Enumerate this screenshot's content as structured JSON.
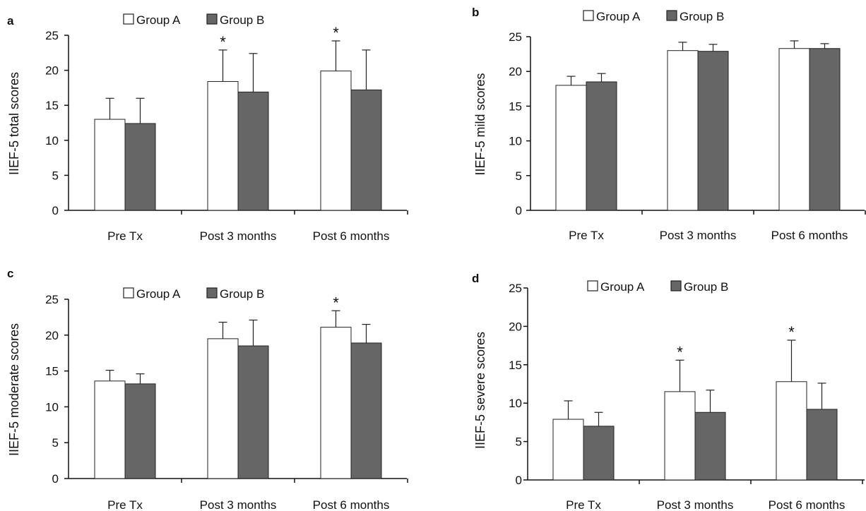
{
  "colors": {
    "group_a": "#ffffff",
    "group_b": "#666666",
    "outline": "#222222",
    "axis": "#111111"
  },
  "chart_data": [
    {
      "type": "bar",
      "panel": "a",
      "ylabel": "IIEF-5 total scores",
      "ylim": [
        0,
        25
      ],
      "yticks": [
        "0",
        "5",
        "10",
        "15",
        "20",
        "25"
      ],
      "categories": [
        "Pre Tx",
        "Post 3 months",
        "Post 6 months"
      ],
      "legend": [
        "Group A",
        "Group B"
      ],
      "series": [
        {
          "name": "Group A",
          "values": [
            13.0,
            18.4,
            19.9
          ],
          "errors": [
            3.0,
            4.5,
            4.3
          ]
        },
        {
          "name": "Group B",
          "values": [
            12.4,
            16.9,
            17.2
          ],
          "errors": [
            3.6,
            5.5,
            5.7
          ]
        }
      ],
      "annotations": [
        {
          "category": 1,
          "series": 0,
          "text": "*"
        },
        {
          "category": 2,
          "series": 0,
          "text": "*"
        }
      ]
    },
    {
      "type": "bar",
      "panel": "b",
      "ylabel": "IIEF-5 mild scores",
      "ylim": [
        0,
        25
      ],
      "yticks": [
        "0",
        "5",
        "10",
        "15",
        "20",
        "25"
      ],
      "categories": [
        "Pre Tx",
        "Post 3 months",
        "Post 6 months"
      ],
      "legend": [
        "Group A",
        "Group B"
      ],
      "series": [
        {
          "name": "Group A",
          "values": [
            18.0,
            23.0,
            23.3
          ],
          "errors": [
            1.3,
            1.2,
            1.1
          ]
        },
        {
          "name": "Group B",
          "values": [
            18.5,
            22.9,
            23.3
          ],
          "errors": [
            1.2,
            1.0,
            0.7
          ]
        }
      ],
      "annotations": []
    },
    {
      "type": "bar",
      "panel": "c",
      "ylabel": "IIEF-5 moderate scores",
      "ylim": [
        0,
        25
      ],
      "yticks": [
        "0",
        "5",
        "10",
        "15",
        "20",
        "25"
      ],
      "categories": [
        "Pre Tx",
        "Post 3 months",
        "Post 6 months"
      ],
      "legend": [
        "Group A",
        "Group B"
      ],
      "series": [
        {
          "name": "Group A",
          "values": [
            13.6,
            19.5,
            21.1
          ],
          "errors": [
            1.5,
            2.3,
            2.3
          ]
        },
        {
          "name": "Group B",
          "values": [
            13.2,
            18.5,
            18.9
          ],
          "errors": [
            1.4,
            3.6,
            2.6
          ]
        }
      ],
      "annotations": [
        {
          "category": 2,
          "series": 0,
          "text": "*"
        }
      ]
    },
    {
      "type": "bar",
      "panel": "d",
      "ylabel": "IIEF-5 severe scores",
      "ylim": [
        0,
        25
      ],
      "yticks": [
        "0",
        "5",
        "10",
        "15",
        "20",
        "25"
      ],
      "categories": [
        "Pre Tx",
        "Post 3 months",
        "Post 6 months"
      ],
      "legend": [
        "Group A",
        "Group B"
      ],
      "series": [
        {
          "name": "Group A",
          "values": [
            7.9,
            11.5,
            12.8
          ],
          "errors": [
            2.4,
            4.1,
            5.4
          ]
        },
        {
          "name": "Group B",
          "values": [
            7.0,
            8.8,
            9.2
          ],
          "errors": [
            1.8,
            2.9,
            3.4
          ]
        }
      ],
      "annotations": [
        {
          "category": 1,
          "series": 0,
          "text": "*"
        },
        {
          "category": 2,
          "series": 0,
          "text": "*"
        }
      ]
    }
  ]
}
